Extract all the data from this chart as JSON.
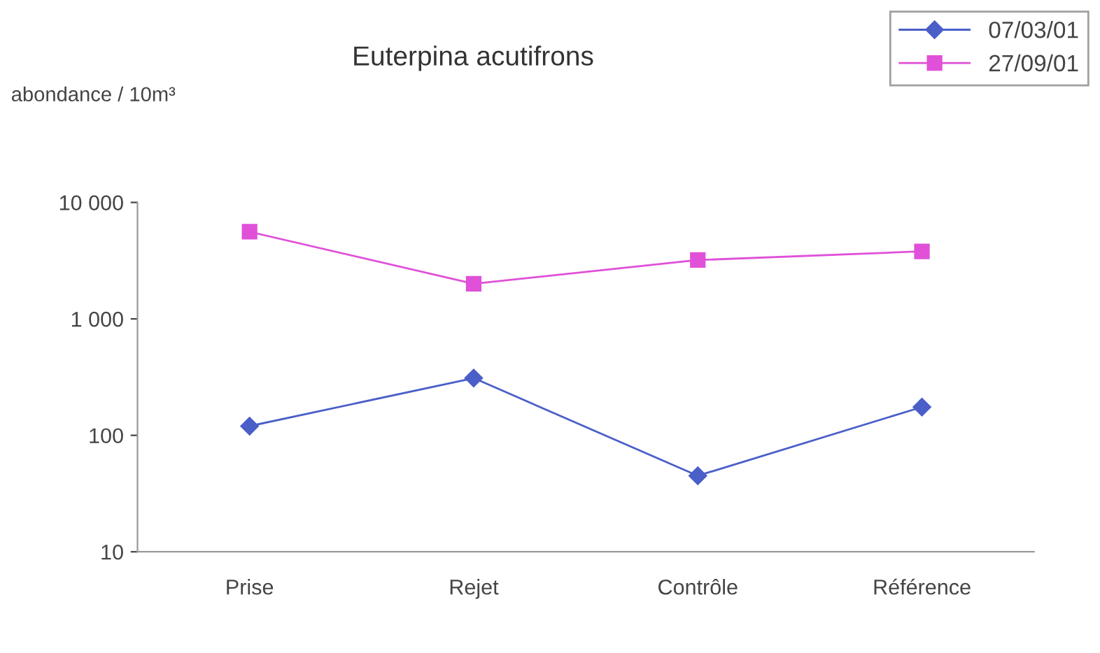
{
  "chart_data": {
    "type": "line",
    "title": "Euterpina acutifrons",
    "ylabel": "abondance / 10m³",
    "categories": [
      "Prise",
      "Rejet",
      "Contrôle",
      "Référence"
    ],
    "series": [
      {
        "name": "07/03/01",
        "color": "#4a5fc8",
        "marker": "diamond",
        "values": [
          120,
          310,
          45,
          175
        ]
      },
      {
        "name": "27/09/01",
        "color": "#e050d8",
        "marker": "square",
        "values": [
          5600,
          2000,
          3200,
          3800
        ]
      }
    ],
    "log": "y",
    "ylim": [
      10,
      10000
    ],
    "yticks": [
      10,
      100,
      {
        "value": 1000,
        "label": "1 000"
      },
      {
        "value": 10000,
        "label": "10 000"
      }
    ],
    "grid": false,
    "legend": "top right"
  }
}
